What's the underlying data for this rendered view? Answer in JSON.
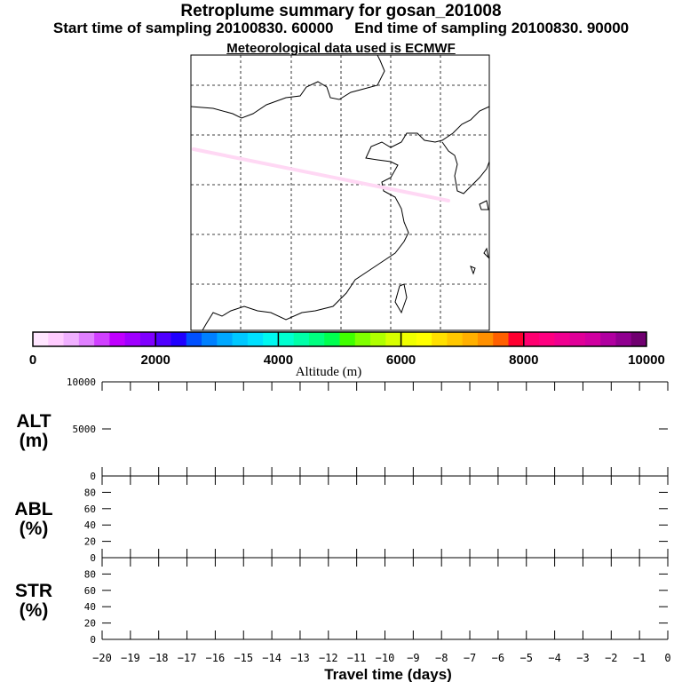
{
  "title": "Retroplume summary for gosan_201008",
  "subtitle_start": "Start time of sampling 20100830. 60000",
  "subtitle_end": "End time of sampling 20100830. 90000",
  "met_line": "Meteorological data used is ECMWF",
  "chart_data": [
    {
      "type": "map",
      "name": "Retroplume trajectory map",
      "plume_color": "#ffd8f4",
      "grid": true
    },
    {
      "type": "colorbar",
      "label": "Altitude (m)",
      "range": [
        0,
        10000
      ],
      "tick_labels": [
        "0",
        "2000",
        "4000",
        "6000",
        "8000",
        "10000"
      ],
      "colors": [
        "#ffe6ff",
        "#ffccff",
        "#f0b0ff",
        "#e080ff",
        "#d040ff",
        "#c000ff",
        "#a000ff",
        "#8000ff",
        "#5000ff",
        "#2000ff",
        "#0050ff",
        "#0080ff",
        "#00a8ff",
        "#00c8ff",
        "#00e0ff",
        "#00f8f0",
        "#00ffd0",
        "#00ffa8",
        "#00ff80",
        "#00ff50",
        "#40ff00",
        "#80ff00",
        "#b0ff00",
        "#d8ff00",
        "#f0ff00",
        "#ffff00",
        "#ffe000",
        "#ffc800",
        "#ffb000",
        "#ff9000",
        "#ff6000",
        "#ff0030",
        "#ff0070",
        "#ff0080",
        "#f00090",
        "#e00098",
        "#d000a0",
        "#b000a0",
        "#900090",
        "#700070"
      ]
    },
    {
      "type": "line",
      "ylabel": [
        "ALT",
        "(m)"
      ],
      "ylim": [
        0,
        10000
      ],
      "yticks": [
        "0",
        "5000",
        "10000"
      ],
      "series": []
    },
    {
      "type": "line",
      "ylabel": [
        "ABL",
        "(%)"
      ],
      "ylim": [
        0,
        100
      ],
      "yticks": [
        "0",
        "20",
        "40",
        "60",
        "80"
      ],
      "series": []
    },
    {
      "type": "line",
      "ylabel": [
        "STR",
        "(%)"
      ],
      "ylim": [
        0,
        100
      ],
      "yticks": [
        "0",
        "20",
        "40",
        "60",
        "80"
      ],
      "series": []
    }
  ],
  "xaxis": {
    "label": "Travel time (days)",
    "xlim": [
      -20,
      0
    ],
    "ticks": [
      "−20",
      "−19",
      "−18",
      "−17",
      "−16",
      "−15",
      "−14",
      "−13",
      "−12",
      "−11",
      "−10",
      "−9",
      "−8",
      "−7",
      "−6",
      "−5",
      "−4",
      "−3",
      "−2",
      "−1",
      "0"
    ]
  }
}
